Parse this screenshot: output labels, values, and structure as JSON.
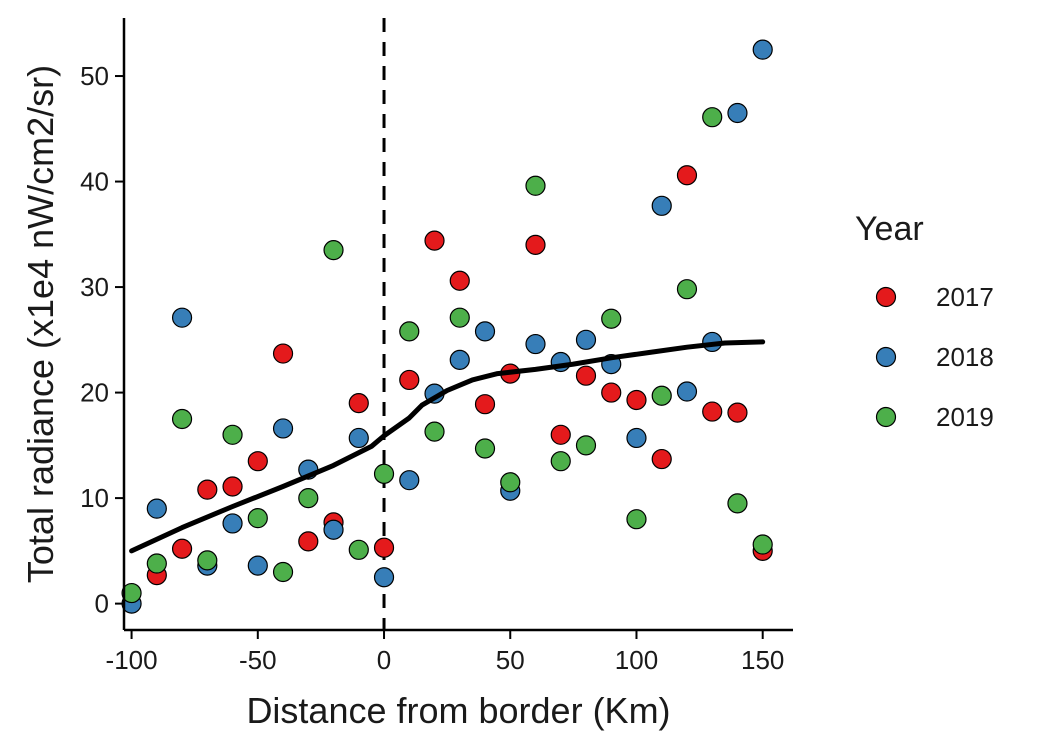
{
  "chart_data": {
    "type": "scatter",
    "title": "",
    "xlabel": "Distance from border (Km)",
    "ylabel": "Total radiance (x1e4 nW/cm2/sr)",
    "xlim": [
      -103,
      162
    ],
    "ylim": [
      -2.5,
      55.5
    ],
    "xticks": [
      -100,
      -50,
      0,
      50,
      100,
      150
    ],
    "yticks": [
      0,
      10,
      20,
      30,
      40,
      50
    ],
    "grid": false,
    "legend": {
      "title": "Year",
      "placement": "right"
    },
    "vline": {
      "x": 0,
      "style": "dashed"
    },
    "series": [
      {
        "name": "2017",
        "color": "#E41A1C",
        "points": [
          [
            -90,
            2.7
          ],
          [
            -80,
            5.2
          ],
          [
            -70,
            10.8
          ],
          [
            -60,
            11.1
          ],
          [
            -50,
            13.5
          ],
          [
            -40,
            23.7
          ],
          [
            -30,
            5.9
          ],
          [
            -20,
            7.7
          ],
          [
            -10,
            19.0
          ],
          [
            0,
            5.3
          ],
          [
            10,
            21.2
          ],
          [
            20,
            34.4
          ],
          [
            30,
            30.6
          ],
          [
            40,
            18.9
          ],
          [
            50,
            21.8
          ],
          [
            60,
            34.0
          ],
          [
            70,
            16.0
          ],
          [
            80,
            21.6
          ],
          [
            90,
            20.0
          ],
          [
            100,
            19.3
          ],
          [
            110,
            13.7
          ],
          [
            120,
            40.6
          ],
          [
            130,
            18.2
          ],
          [
            140,
            18.1
          ],
          [
            150,
            5.0
          ]
        ]
      },
      {
        "name": "2018",
        "color": "#377EB8",
        "points": [
          [
            -100,
            0.0
          ],
          [
            -90,
            9.0
          ],
          [
            -80,
            27.1
          ],
          [
            -70,
            3.6
          ],
          [
            -60,
            7.6
          ],
          [
            -50,
            3.6
          ],
          [
            -40,
            16.6
          ],
          [
            -30,
            12.7
          ],
          [
            -20,
            7.0
          ],
          [
            -10,
            15.7
          ],
          [
            0,
            2.5
          ],
          [
            10,
            11.7
          ],
          [
            20,
            19.9
          ],
          [
            30,
            23.1
          ],
          [
            40,
            25.8
          ],
          [
            50,
            10.7
          ],
          [
            60,
            24.6
          ],
          [
            70,
            22.9
          ],
          [
            80,
            25.0
          ],
          [
            90,
            22.7
          ],
          [
            100,
            15.7
          ],
          [
            110,
            37.7
          ],
          [
            120,
            20.1
          ],
          [
            130,
            24.8
          ],
          [
            140,
            46.5
          ],
          [
            150,
            52.5
          ]
        ]
      },
      {
        "name": "2019",
        "color": "#4DAF4A",
        "points": [
          [
            -100,
            1.0
          ],
          [
            -90,
            3.8
          ],
          [
            -80,
            17.5
          ],
          [
            -70,
            4.1
          ],
          [
            -60,
            16.0
          ],
          [
            -50,
            8.1
          ],
          [
            -40,
            3.0
          ],
          [
            -30,
            10.0
          ],
          [
            -20,
            33.5
          ],
          [
            -10,
            5.1
          ],
          [
            0,
            12.3
          ],
          [
            10,
            25.8
          ],
          [
            20,
            16.3
          ],
          [
            30,
            27.1
          ],
          [
            40,
            14.7
          ],
          [
            50,
            11.5
          ],
          [
            60,
            39.6
          ],
          [
            70,
            13.5
          ],
          [
            80,
            15.0
          ],
          [
            90,
            27.0
          ],
          [
            100,
            8.0
          ],
          [
            110,
            19.7
          ],
          [
            120,
            29.8
          ],
          [
            130,
            46.1
          ],
          [
            140,
            9.5
          ],
          [
            150,
            5.6
          ]
        ]
      }
    ],
    "smooth_line": {
      "color": "#000000",
      "points": [
        [
          -100,
          5.0
        ],
        [
          -80,
          7.2
        ],
        [
          -60,
          9.2
        ],
        [
          -40,
          11.1
        ],
        [
          -20,
          13.1
        ],
        [
          -5,
          14.9
        ],
        [
          0,
          15.9
        ],
        [
          10,
          17.6
        ],
        [
          15,
          18.8
        ],
        [
          25,
          20.2
        ],
        [
          35,
          21.2
        ],
        [
          45,
          21.8
        ],
        [
          60,
          22.2
        ],
        [
          75,
          22.7
        ],
        [
          90,
          23.3
        ],
        [
          105,
          23.8
        ],
        [
          120,
          24.3
        ],
        [
          135,
          24.7
        ],
        [
          150,
          24.8
        ]
      ]
    }
  }
}
